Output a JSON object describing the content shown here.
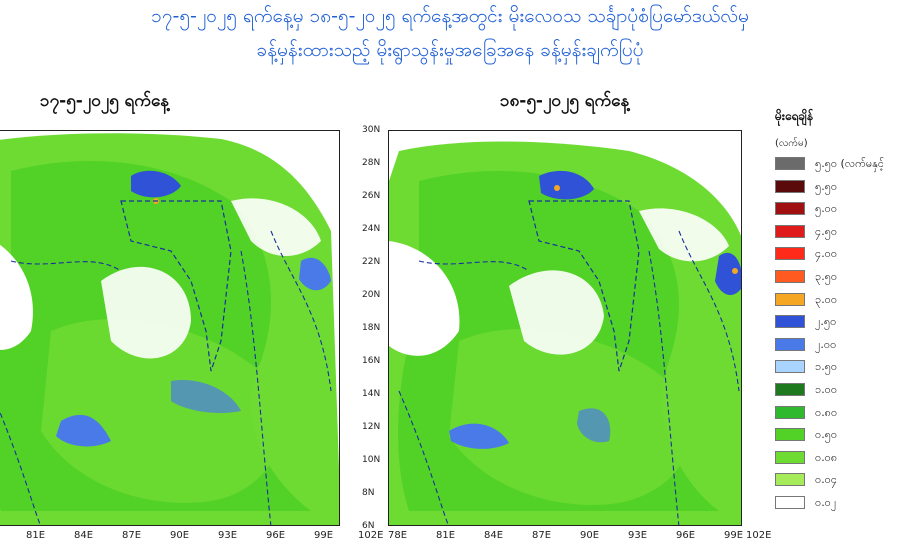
{
  "header": {
    "title_line1": "၁၇-၅-၂၀၂၅ ရက်နေ့မှ ၁၈-၅-၂၀၂၅ ရက်နေ့အတွင်း မိုးလေဝသ သင်္ချာပုံစံပြမော်ဒယ်လ်မှ",
    "title_line2": "ခန့်မှန်းထားသည့် မိုးရွာသွန်းမှုအခြေအနေ ခန့်မှန်းချက်ပြပုံ"
  },
  "maps": [
    {
      "title": "၁၇-၅-၂၀၂၅ ရက်နေ့",
      "x_ticks": [
        "81E",
        "84E",
        "87E",
        "90E",
        "93E",
        "96E",
        "99E",
        "102E"
      ],
      "y_ticks": []
    },
    {
      "title": "၁၈-၅-၂၀၂၅ ရက်နေ့",
      "x_ticks": [
        "78E",
        "81E",
        "84E",
        "87E",
        "90E",
        "93E",
        "96E",
        "99E",
        "102E"
      ],
      "y_ticks": [
        "30N",
        "28N",
        "26N",
        "24N",
        "22N",
        "20N",
        "18N",
        "16N",
        "14N",
        "12N",
        "10N",
        "8N",
        "6N"
      ]
    }
  ],
  "legend": {
    "title": "မိုးရေချိန်",
    "unit": "(လက်မ)",
    "items": [
      {
        "label": "၅.၅၀ (လက်မနှင့်",
        "color": "#6b6b6b"
      },
      {
        "label": "၅.၅၀",
        "color": "#5a0a0a"
      },
      {
        "label": "၅.၀၀",
        "color": "#a01010"
      },
      {
        "label": "၄.၅၀",
        "color": "#e01b1b"
      },
      {
        "label": "၄.၀၀",
        "color": "#ff2a1a"
      },
      {
        "label": "၃.၅၀",
        "color": "#ff5a1f"
      },
      {
        "label": "၃.၀၀",
        "color": "#f5a623"
      },
      {
        "label": "၂.၅၀",
        "color": "#2f52d6"
      },
      {
        "label": "၂.၀၀",
        "color": "#4a7ae8"
      },
      {
        "label": "၁.၅၀",
        "color": "#a8d4ff"
      },
      {
        "label": "၁.၀၀",
        "color": "#1f7a1f"
      },
      {
        "label": "၀.၈၀",
        "color": "#2fb92f"
      },
      {
        "label": "၀.၅၀",
        "color": "#52d126"
      },
      {
        "label": "၀.၀၈",
        "color": "#6edb32"
      },
      {
        "label": "၀.၀၄",
        "color": "#a6ec5a"
      },
      {
        "label": "၀.၀၂",
        "color": "#ffffff"
      }
    ]
  }
}
